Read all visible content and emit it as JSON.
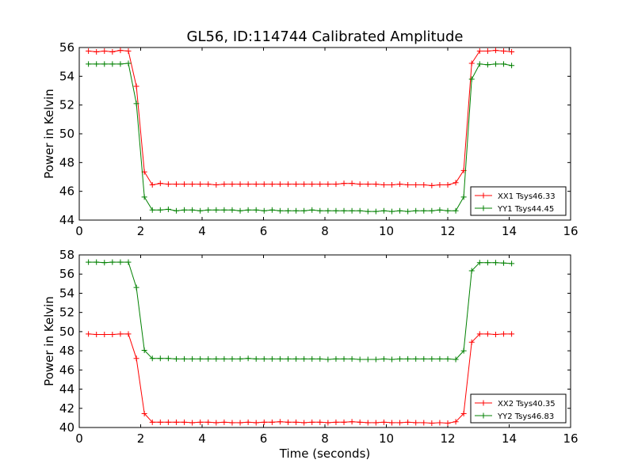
{
  "figure": {
    "title": "GL56, ID:114744 Calibrated Amplitude",
    "xlabel": "Time (seconds)"
  },
  "chart_data": [
    {
      "type": "line",
      "title": "GL56, ID:114744 Calibrated Amplitude",
      "xlabel": "",
      "ylabel": "Power in Kelvin",
      "xlim": [
        0,
        16
      ],
      "ylim": [
        44,
        56
      ],
      "xticks": [
        0,
        2,
        4,
        6,
        8,
        10,
        12,
        14,
        16
      ],
      "yticks": [
        44,
        46,
        48,
        50,
        52,
        54,
        56
      ],
      "grid": false,
      "legend_position": "bottom-right",
      "x": [
        0.3,
        0.56,
        0.82,
        1.08,
        1.34,
        1.6,
        1.86,
        2.12,
        2.38,
        2.64,
        2.9,
        3.16,
        3.42,
        3.68,
        3.94,
        4.2,
        4.46,
        4.72,
        4.98,
        5.24,
        5.5,
        5.76,
        6.02,
        6.28,
        6.54,
        6.8,
        7.06,
        7.32,
        7.58,
        7.84,
        8.1,
        8.36,
        8.62,
        8.88,
        9.14,
        9.4,
        9.66,
        9.92,
        10.18,
        10.44,
        10.7,
        10.96,
        11.22,
        11.48,
        11.74,
        12.0,
        12.26,
        12.52,
        12.78,
        13.04,
        13.3,
        13.56,
        13.82,
        14.08
      ],
      "series": [
        {
          "name": "XX1 Tsys46.33",
          "color": "#ff0000",
          "values": [
            55.75,
            55.7,
            55.75,
            55.7,
            55.8,
            55.75,
            53.3,
            47.35,
            46.45,
            46.55,
            46.5,
            46.5,
            46.5,
            46.5,
            46.5,
            46.5,
            46.45,
            46.5,
            46.5,
            46.5,
            46.5,
            46.5,
            46.5,
            46.5,
            46.5,
            46.5,
            46.5,
            46.5,
            46.5,
            46.5,
            46.5,
            46.5,
            46.55,
            46.55,
            46.5,
            46.5,
            46.5,
            46.45,
            46.45,
            46.5,
            46.45,
            46.45,
            46.45,
            46.4,
            46.45,
            46.45,
            46.6,
            47.45,
            54.9,
            55.75,
            55.75,
            55.8,
            55.75,
            55.7
          ]
        },
        {
          "name": "YY1 Tsys44.45",
          "color": "#008000",
          "values": [
            54.85,
            54.85,
            54.85,
            54.85,
            54.85,
            54.9,
            52.1,
            45.6,
            44.7,
            44.7,
            44.75,
            44.65,
            44.7,
            44.7,
            44.65,
            44.7,
            44.7,
            44.7,
            44.7,
            44.65,
            44.7,
            44.7,
            44.65,
            44.7,
            44.65,
            44.65,
            44.65,
            44.65,
            44.7,
            44.65,
            44.65,
            44.65,
            44.65,
            44.65,
            44.65,
            44.6,
            44.6,
            44.65,
            44.6,
            44.65,
            44.6,
            44.65,
            44.65,
            44.65,
            44.7,
            44.65,
            44.65,
            45.6,
            53.8,
            54.85,
            54.8,
            54.85,
            54.85,
            54.75
          ]
        }
      ]
    },
    {
      "type": "line",
      "title": "",
      "xlabel": "Time (seconds)",
      "ylabel": "Power in Kelvin",
      "xlim": [
        0,
        16
      ],
      "ylim": [
        40,
        58
      ],
      "xticks": [
        0,
        2,
        4,
        6,
        8,
        10,
        12,
        14,
        16
      ],
      "yticks": [
        40,
        42,
        44,
        46,
        48,
        50,
        52,
        54,
        56,
        58
      ],
      "grid": false,
      "legend_position": "bottom-right",
      "x": [
        0.3,
        0.56,
        0.82,
        1.08,
        1.34,
        1.6,
        1.86,
        2.12,
        2.38,
        2.64,
        2.9,
        3.16,
        3.42,
        3.68,
        3.94,
        4.2,
        4.46,
        4.72,
        4.98,
        5.24,
        5.5,
        5.76,
        6.02,
        6.28,
        6.54,
        6.8,
        7.06,
        7.32,
        7.58,
        7.84,
        8.1,
        8.36,
        8.62,
        8.88,
        9.14,
        9.4,
        9.66,
        9.92,
        10.18,
        10.44,
        10.7,
        10.96,
        11.22,
        11.48,
        11.74,
        12.0,
        12.26,
        12.52,
        12.78,
        13.04,
        13.3,
        13.56,
        13.82,
        14.08
      ],
      "series": [
        {
          "name": "XX2 Tsys40.35",
          "color": "#ff0000",
          "values": [
            49.75,
            49.7,
            49.7,
            49.7,
            49.75,
            49.75,
            47.2,
            41.45,
            40.55,
            40.55,
            40.55,
            40.55,
            40.55,
            40.5,
            40.55,
            40.55,
            40.5,
            40.55,
            40.5,
            40.5,
            40.55,
            40.5,
            40.55,
            40.55,
            40.6,
            40.55,
            40.55,
            40.5,
            40.55,
            40.55,
            40.5,
            40.55,
            40.55,
            40.6,
            40.55,
            40.5,
            40.5,
            40.55,
            40.5,
            40.5,
            40.55,
            40.5,
            40.5,
            40.45,
            40.5,
            40.45,
            40.6,
            41.45,
            48.9,
            49.75,
            49.75,
            49.7,
            49.75,
            49.75
          ]
        },
        {
          "name": "YY2 Tsys46.83",
          "color": "#008000",
          "values": [
            57.25,
            57.25,
            57.2,
            57.25,
            57.25,
            57.25,
            54.6,
            48.05,
            47.2,
            47.2,
            47.2,
            47.15,
            47.15,
            47.15,
            47.15,
            47.15,
            47.15,
            47.15,
            47.15,
            47.15,
            47.2,
            47.15,
            47.15,
            47.15,
            47.15,
            47.15,
            47.15,
            47.15,
            47.15,
            47.15,
            47.1,
            47.15,
            47.15,
            47.15,
            47.1,
            47.1,
            47.1,
            47.15,
            47.1,
            47.15,
            47.15,
            47.15,
            47.15,
            47.15,
            47.15,
            47.15,
            47.1,
            48.0,
            56.35,
            57.2,
            57.2,
            57.2,
            57.15,
            57.1
          ]
        }
      ]
    }
  ]
}
